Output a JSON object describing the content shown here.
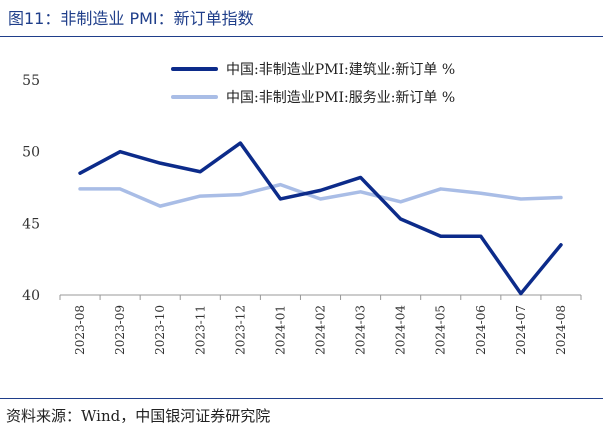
{
  "figure": {
    "title": "图11：非制造业 PMI：新订单指数",
    "source": "资料来源：Wind，中国银河证券研究院"
  },
  "colors": {
    "accent": "#1f3e8a",
    "series_dark": "#0c2b8a",
    "series_light": "#a9bde6",
    "axis": "#999999"
  },
  "chart_data": {
    "type": "line",
    "x": [
      "2023-08",
      "2023-09",
      "2023-10",
      "2023-11",
      "2023-12",
      "2024-01",
      "2024-02",
      "2024-03",
      "2024-04",
      "2024-05",
      "2024-06",
      "2024-07",
      "2024-08"
    ],
    "ylim": [
      40,
      55
    ],
    "yticks": [
      40,
      45,
      50,
      55
    ],
    "legend_position": "top",
    "grid": false,
    "series": [
      {
        "name": "中国:非制造业PMI:建筑业:新订单 %",
        "color": "#0c2b8a",
        "values": [
          48.5,
          50.0,
          49.2,
          48.6,
          50.6,
          46.7,
          47.3,
          48.2,
          45.3,
          44.1,
          44.1,
          40.1,
          43.5
        ]
      },
      {
        "name": "中国:非制造业PMI:服务业:新订单 %",
        "color": "#a9bde6",
        "values": [
          47.4,
          47.4,
          46.2,
          46.9,
          47.0,
          47.7,
          46.7,
          47.2,
          46.5,
          47.4,
          47.1,
          46.7,
          46.8
        ]
      }
    ]
  }
}
